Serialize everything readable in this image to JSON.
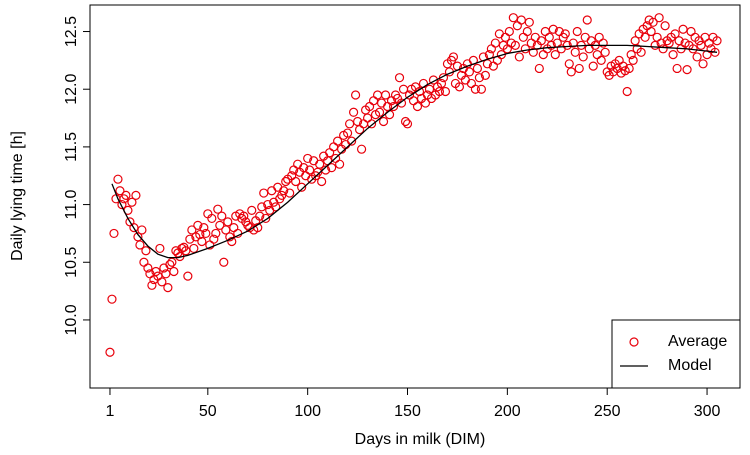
{
  "chart_data": {
    "type": "scatter",
    "xlabel": "Days in milk (DIM)",
    "ylabel": "Daily lying time [h]",
    "xlim": [
      -9,
      316.5
    ],
    "ylim": [
      9.41,
      12.73
    ],
    "xticks": [
      1,
      50,
      100,
      150,
      200,
      250,
      300
    ],
    "yticks": [
      {
        "value": 10.0,
        "label": "10.0"
      },
      10.5,
      {
        "value": 11.0,
        "label": "11.0"
      },
      11.5,
      {
        "value": 12.0,
        "label": "12.0"
      },
      12.5
    ],
    "legend": "bottom-right",
    "series": [
      {
        "name": "Average",
        "color": "#e8000b",
        "kind": "points",
        "x": [
          1,
          2,
          3,
          4,
          5,
          6,
          7,
          8,
          9,
          10,
          11,
          12,
          13,
          14,
          15,
          16,
          17,
          18,
          19,
          20,
          21,
          22,
          23,
          24,
          25,
          26,
          27,
          28,
          29,
          30,
          31,
          32,
          33,
          34,
          35,
          36,
          37,
          38,
          39,
          40,
          41,
          42,
          43,
          44,
          45,
          46,
          47,
          48,
          49,
          50,
          51,
          52,
          53,
          54,
          55,
          56,
          57,
          58,
          59,
          60,
          61,
          62,
          63,
          64,
          65,
          66,
          67,
          68,
          69,
          70,
          71,
          72,
          73,
          74,
          75,
          76,
          77,
          78,
          79,
          80,
          81,
          82,
          83,
          84,
          85,
          86,
          87,
          88,
          89,
          90,
          91,
          92,
          93,
          94,
          95,
          96,
          97,
          98,
          99,
          100,
          101,
          102,
          103,
          104,
          105,
          106,
          107,
          108,
          109,
          110,
          111,
          112,
          113,
          114,
          115,
          116,
          117,
          118,
          119,
          120,
          121,
          122,
          123,
          124,
          125,
          126,
          127,
          128,
          129,
          130,
          131,
          132,
          133,
          134,
          135,
          136,
          137,
          138,
          139,
          140,
          141,
          142,
          143,
          144,
          145,
          146,
          147,
          148,
          149,
          150,
          151,
          152,
          153,
          154,
          155,
          156,
          157,
          158,
          159,
          160,
          161,
          162,
          163,
          164,
          165,
          166,
          167,
          168,
          169,
          170,
          171,
          172,
          173,
          174,
          175,
          176,
          177,
          178,
          179,
          180,
          181,
          182,
          183,
          184,
          185,
          186,
          187,
          188,
          189,
          190,
          191,
          192,
          193,
          194,
          195,
          196,
          197,
          198,
          199,
          200,
          201,
          202,
          203,
          204,
          205,
          206,
          207,
          208,
          209,
          210,
          211,
          212,
          213,
          214,
          215,
          216,
          217,
          218,
          219,
          220,
          221,
          222,
          223,
          224,
          225,
          226,
          227,
          228,
          229,
          230,
          231,
          232,
          233,
          234,
          235,
          236,
          237,
          238,
          239,
          240,
          241,
          242,
          243,
          244,
          245,
          246,
          247,
          248,
          249,
          250,
          251,
          252,
          253,
          254,
          255,
          256,
          257,
          258,
          259,
          260,
          261,
          262,
          263,
          264,
          265,
          266,
          267,
          268,
          269,
          270,
          271,
          272,
          273,
          274,
          275,
          276,
          277,
          278,
          279,
          280,
          281,
          282,
          283,
          284,
          285,
          286,
          287,
          288,
          289,
          290,
          291,
          292,
          293,
          294,
          295,
          296,
          297,
          298,
          299,
          300,
          301,
          302,
          303,
          304,
          305
        ],
        "values": [
          9.72,
          10.18,
          10.75,
          11.05,
          11.22,
          11.12,
          11.0,
          11.05,
          11.08,
          10.95,
          10.85,
          11.02,
          10.8,
          11.08,
          10.72,
          10.65,
          10.78,
          10.5,
          10.6,
          10.45,
          10.4,
          10.3,
          10.35,
          10.42,
          10.38,
          10.62,
          10.33,
          10.45,
          10.4,
          10.28,
          10.48,
          10.5,
          10.42,
          10.6,
          10.58,
          10.55,
          10.62,
          10.63,
          10.6,
          10.38,
          10.7,
          10.78,
          10.62,
          10.72,
          10.82,
          10.74,
          10.68,
          10.8,
          10.75,
          10.92,
          10.65,
          10.88,
          10.7,
          10.75,
          10.96,
          10.82,
          10.9,
          10.5,
          10.78,
          10.85,
          10.72,
          10.68,
          10.8,
          10.9,
          10.75,
          10.92,
          10.88,
          10.9,
          10.85,
          10.82,
          10.8,
          10.95,
          10.78,
          10.86,
          10.8,
          10.9,
          10.98,
          11.1,
          10.88,
          11.0,
          10.95,
          11.12,
          11.02,
          10.98,
          11.15,
          11.05,
          11.08,
          11.12,
          11.2,
          11.22,
          11.1,
          11.25,
          11.3,
          11.2,
          11.35,
          11.28,
          11.15,
          11.32,
          11.25,
          11.4,
          11.3,
          11.22,
          11.38,
          11.25,
          11.28,
          11.35,
          11.2,
          11.42,
          11.3,
          11.38,
          11.45,
          11.32,
          11.5,
          11.4,
          11.55,
          11.35,
          11.48,
          11.6,
          11.52,
          11.62,
          11.7,
          11.55,
          11.8,
          11.95,
          11.72,
          11.65,
          11.48,
          11.7,
          11.82,
          11.75,
          11.85,
          11.7,
          11.9,
          11.78,
          11.95,
          11.8,
          11.88,
          11.72,
          11.95,
          11.85,
          11.78,
          11.9,
          11.85,
          11.95,
          11.92,
          12.1,
          11.88,
          12.0,
          11.72,
          11.7,
          11.95,
          12.0,
          11.9,
          12.02,
          11.85,
          11.98,
          11.92,
          12.05,
          11.88,
          11.95,
          12.0,
          11.92,
          12.08,
          11.95,
          12.02,
          11.98,
          12.05,
          12.1,
          11.98,
          12.22,
          12.15,
          12.25,
          12.28,
          12.05,
          12.2,
          12.02,
          12.12,
          12.18,
          12.08,
          12.22,
          12.15,
          12.05,
          12.25,
          12.0,
          12.18,
          12.1,
          12.0,
          12.28,
          12.12,
          12.22,
          12.3,
          12.35,
          12.2,
          12.4,
          12.25,
          12.48,
          12.3,
          12.38,
          12.45,
          12.35,
          12.5,
          12.4,
          12.62,
          12.38,
          12.55,
          12.28,
          12.6,
          12.45,
          12.35,
          12.5,
          12.58,
          12.4,
          12.32,
          12.45,
          12.38,
          12.18,
          12.42,
          12.3,
          12.5,
          12.35,
          12.45,
          12.38,
          12.52,
          12.3,
          12.4,
          12.5,
          12.35,
          12.45,
          12.48,
          12.38,
          12.22,
          12.15,
          12.4,
          12.32,
          12.5,
          12.18,
          12.38,
          12.28,
          12.45,
          12.6,
          12.35,
          12.42,
          12.2,
          12.38,
          12.3,
          12.45,
          12.25,
          12.4,
          12.32,
          12.15,
          12.12,
          12.2,
          12.15,
          12.22,
          12.18,
          12.25,
          12.14,
          12.2,
          12.16,
          11.98,
          12.18,
          12.3,
          12.25,
          12.42,
          12.35,
          12.48,
          12.32,
          12.52,
          12.45,
          12.55,
          12.6,
          12.5,
          12.58,
          12.38,
          12.45,
          12.62,
          12.4,
          12.35,
          12.55,
          12.42,
          12.4,
          12.45,
          12.3,
          12.48,
          12.18,
          12.42,
          12.35,
          12.52,
          12.4,
          12.17,
          12.38,
          12.5,
          12.35,
          12.45,
          12.28,
          12.42,
          12.38,
          12.22,
          12.45,
          12.3,
          12.4,
          12.35,
          12.45,
          12.32,
          12.42
        ]
      },
      {
        "name": "Model",
        "color": "#000000",
        "kind": "line",
        "x": [
          2,
          5,
          10,
          15,
          20,
          25,
          30,
          35,
          40,
          50,
          60,
          70,
          80,
          90,
          100,
          110,
          120,
          130,
          140,
          150,
          160,
          170,
          180,
          190,
          200,
          210,
          220,
          230,
          240,
          250,
          260,
          270,
          280,
          290,
          300,
          305
        ],
        "values": [
          11.18,
          11.05,
          10.88,
          10.74,
          10.64,
          10.57,
          10.54,
          10.54,
          10.56,
          10.62,
          10.69,
          10.77,
          10.88,
          11.02,
          11.18,
          11.34,
          11.5,
          11.66,
          11.8,
          11.93,
          12.04,
          12.13,
          12.2,
          12.26,
          12.31,
          12.34,
          12.36,
          12.37,
          12.38,
          12.38,
          12.38,
          12.37,
          12.36,
          12.35,
          12.33,
          12.32
        ]
      }
    ]
  }
}
